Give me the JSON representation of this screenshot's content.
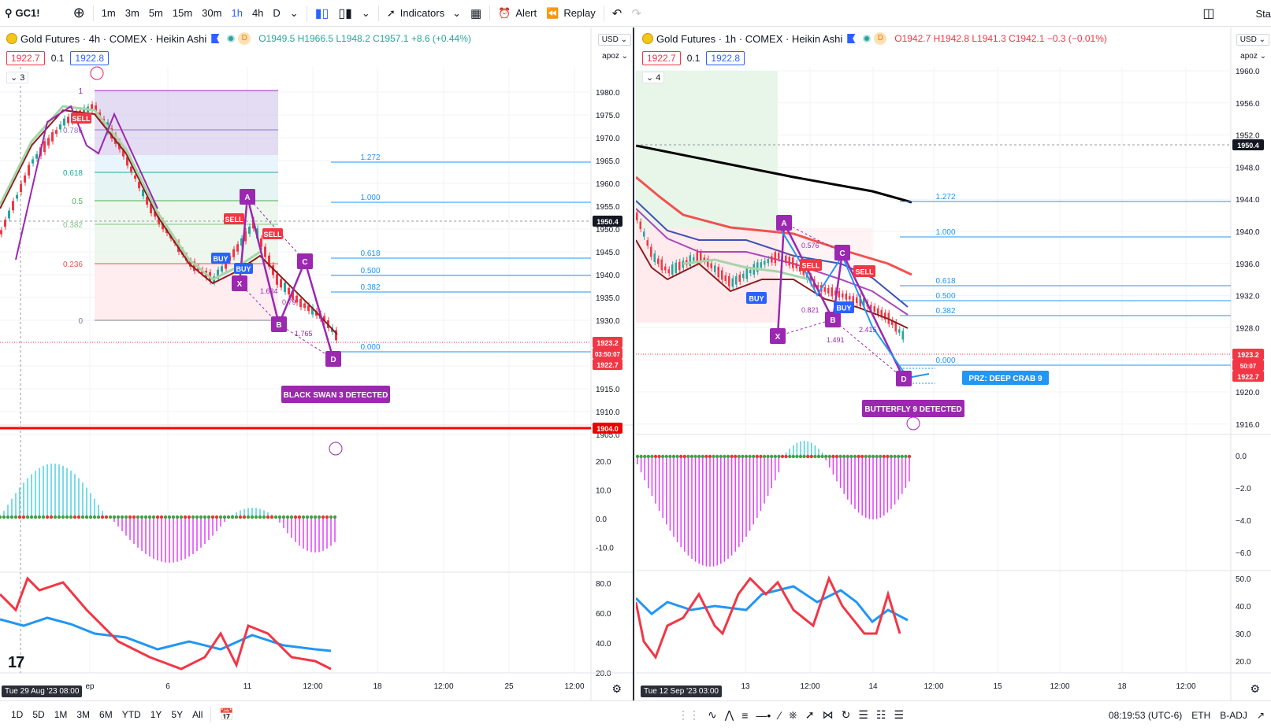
{
  "toolbar": {
    "symbol": "GC1!",
    "timeframes": [
      "1m",
      "3m",
      "5m",
      "15m",
      "30m",
      "1h",
      "4h",
      "D"
    ],
    "active_timeframe": "1h",
    "indicators_label": "Indicators",
    "alert_label": "Alert",
    "replay_label": "Replay",
    "right_text": "Sta"
  },
  "left": {
    "title": "Gold Futures · 4h · COMEX · Heikin Ashi",
    "badge": "D",
    "ohlc": {
      "o": "O1949.5",
      "h": "H1966.5",
      "l": "L1948.2",
      "c": "C1957.1",
      "chg": "+8.6 (+0.44%)"
    },
    "bid": "1922.7",
    "spread": "0.1",
    "ask": "1922.8",
    "collapse": "3",
    "currency": "USD",
    "scale_mode": "apoz",
    "price_axis": [
      "1980.0",
      "1975.0",
      "1970.0",
      "1965.0",
      "1960.0",
      "1955.0",
      "1950.0",
      "1945.0",
      "1940.0",
      "1935.0",
      "1930.0",
      "1925.0",
      "1920.0",
      "1915.0",
      "1910.0",
      "1905.0"
    ],
    "osc_axis": [
      "20.0",
      "10.0",
      "0.0",
      "-10.0"
    ],
    "rsi_axis": [
      "80.0",
      "60.0",
      "40.0",
      "20.0"
    ],
    "price_tags": {
      "cross": "1950.4",
      "last": "1923.2",
      "countdown": "03:50:07",
      "bid": "1922.7",
      "support": "1904.0"
    },
    "fib_left": [
      "1",
      "0.786",
      "0.618",
      "0.5",
      "0.382",
      "0.236",
      "0"
    ],
    "fib_ext": [
      "1.272",
      "1.000",
      "0.618",
      "0.500",
      "0.382",
      "0.000"
    ],
    "pattern_points": [
      "X",
      "A",
      "B",
      "C",
      "D"
    ],
    "ratios": [
      "1.634",
      "0.79",
      "1.765"
    ],
    "signals": [
      "SELL",
      "SELL",
      "SELL",
      "BUY",
      "BUY"
    ],
    "detected": "BLACK SWAN 3 DETECTED",
    "time_badge": "Tue 29 Aug '23   08:00",
    "time_axis": [
      "ep",
      "6",
      "11",
      "12:00",
      "18",
      "12:00",
      "25",
      "12:00"
    ],
    "logo": "17"
  },
  "right": {
    "title": "Gold Futures · 1h · COMEX · Heikin Ashi",
    "badge": "D",
    "ohlc": {
      "o": "O1942.7",
      "h": "H1942.8",
      "l": "L1941.3",
      "c": "C1942.1",
      "chg": "−0.3 (−0.01%)"
    },
    "bid": "1922.7",
    "spread": "0.1",
    "ask": "1922.8",
    "collapse": "4",
    "currency": "USD",
    "scale_mode": "apoz",
    "price_axis": [
      "1960.0",
      "1956.0",
      "1952.0",
      "1948.0",
      "1944.0",
      "1940.0",
      "1936.0",
      "1932.0",
      "1928.0",
      "1924.0",
      "1920.0",
      "1916.0"
    ],
    "osc_axis": [
      "0.0",
      "−2.0",
      "−4.0",
      "−6.0"
    ],
    "rsi_axis": [
      "50.0",
      "40.0",
      "30.0",
      "20.0"
    ],
    "price_tags": {
      "cross": "1950.4",
      "last": "1923.2",
      "countdown": "50:07",
      "bid": "1922.7"
    },
    "fib_ext": [
      "1.272",
      "1.000",
      "0.618",
      "0.500",
      "0.382",
      "0.000"
    ],
    "pattern_points": [
      "X",
      "A",
      "B",
      "C",
      "D"
    ],
    "ratios": [
      "0.576",
      "0.821",
      "2.415",
      "1.491"
    ],
    "signals": [
      "SELL",
      "SELL",
      "BUY",
      "BUY"
    ],
    "prz": "PRZ: DEEP CRAB 9",
    "detected": "BUTTERFLY 9 DETECTED",
    "time_badge": "Tue 12 Sep '23   03:00",
    "time_axis": [
      "13",
      "12:00",
      "14",
      "12:00",
      "15",
      "12:00",
      "18",
      "12:00"
    ]
  },
  "bottom": {
    "ranges": [
      "1D",
      "5D",
      "1M",
      "3M",
      "6M",
      "YTD",
      "1Y",
      "5Y",
      "All"
    ],
    "clock": "08:19:53 (UTC-6)",
    "session": "ETH",
    "adj": "B-ADJ"
  },
  "colors": {
    "up": "#26a69a",
    "down": "#f23645",
    "pattern": "#9c27b0",
    "fib_blue": "#2196f3",
    "support": "#ff0000"
  }
}
